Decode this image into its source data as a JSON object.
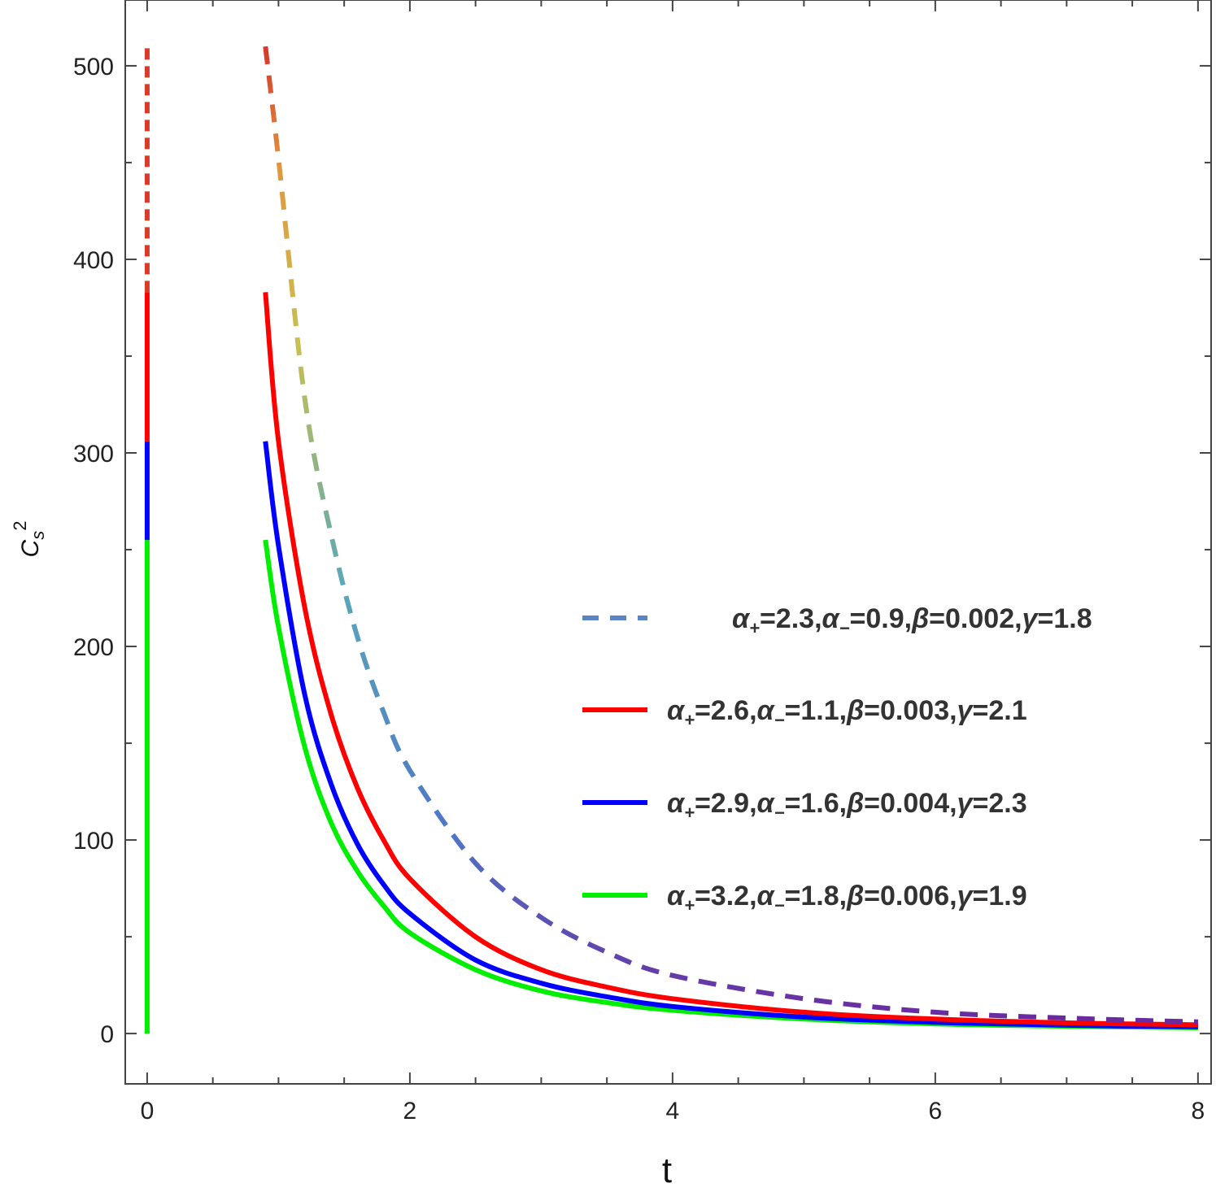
{
  "chart_data": {
    "type": "line",
    "xlabel": "t",
    "ylabel": {
      "main": "C",
      "sub": "s",
      "sup": "2"
    },
    "xlim": [
      -0.1667,
      8.1
    ],
    "ylim": [
      -26,
      534
    ],
    "xticks": [
      0,
      2,
      4,
      6,
      8
    ],
    "yticks": [
      0,
      100,
      200,
      300,
      400,
      500
    ],
    "grid": false,
    "frame": true,
    "legend_position": "center-right",
    "series": [
      {
        "name": "α₊=2.3,α₋=0.9,β=0.002,γ=1.8",
        "label_parts": {
          "a_plus": "2.3",
          "a_minus": "0.9",
          "beta": "0.002",
          "gamma": "1.8"
        },
        "style": "dashed",
        "color": "#5b84c4",
        "gradient": [
          "#d93a2a",
          "#e09840",
          "#c8c050",
          "#5aa8b8",
          "#4f78c8",
          "#6a2aa0"
        ],
        "points": [
          [
            0.9,
            510
          ],
          [
            1.0,
            452
          ],
          [
            1.2,
            328
          ],
          [
            1.4,
            258
          ],
          [
            1.6,
            205
          ],
          [
            1.8,
            166
          ],
          [
            2.0,
            136
          ],
          [
            2.5,
            88
          ],
          [
            3.0,
            60
          ],
          [
            3.5,
            42
          ],
          [
            4.0,
            30
          ],
          [
            5.0,
            18
          ],
          [
            6.0,
            11
          ],
          [
            7.0,
            8
          ],
          [
            8.0,
            6
          ]
        ]
      },
      {
        "name": "α₊=2.6,α₋=1.1,β=0.003,γ=2.1",
        "label_parts": {
          "a_plus": "2.6",
          "a_minus": "1.1",
          "beta": "0.003",
          "gamma": "2.1"
        },
        "style": "solid",
        "color": "#ff0000",
        "points": [
          [
            0.9,
            383
          ],
          [
            1.0,
            306
          ],
          [
            1.2,
            220
          ],
          [
            1.4,
            165
          ],
          [
            1.6,
            127
          ],
          [
            1.8,
            100
          ],
          [
            2.0,
            80
          ],
          [
            2.5,
            50
          ],
          [
            3.0,
            33
          ],
          [
            3.5,
            24
          ],
          [
            4.0,
            18
          ],
          [
            5.0,
            11
          ],
          [
            6.0,
            7.5
          ],
          [
            7.0,
            5.5
          ],
          [
            8.0,
            4.5
          ]
        ]
      },
      {
        "name": "α₊=2.9,α₋=1.6,β=0.004,γ=2.3",
        "label_parts": {
          "a_plus": "2.9",
          "a_minus": "1.6",
          "beta": "0.004",
          "gamma": "2.3"
        },
        "style": "solid",
        "color": "#0000ff",
        "points": [
          [
            0.9,
            306
          ],
          [
            1.0,
            252
          ],
          [
            1.2,
            175
          ],
          [
            1.4,
            129
          ],
          [
            1.6,
            98
          ],
          [
            1.8,
            77
          ],
          [
            2.0,
            62
          ],
          [
            2.5,
            38
          ],
          [
            3.0,
            26
          ],
          [
            3.5,
            19
          ],
          [
            4.0,
            14
          ],
          [
            5.0,
            8.5
          ],
          [
            6.0,
            5.8
          ],
          [
            7.0,
            4.3
          ],
          [
            8.0,
            3.5
          ]
        ]
      },
      {
        "name": "α₊=3.2,α₋=1.8,β=0.006,γ=1.9",
        "label_parts": {
          "a_plus": "3.2",
          "a_minus": "1.8",
          "beta": "0.006",
          "gamma": "1.9"
        },
        "style": "solid",
        "color": "#00ee00",
        "points": [
          [
            0.9,
            255
          ],
          [
            1.0,
            210
          ],
          [
            1.2,
            148
          ],
          [
            1.4,
            109
          ],
          [
            1.6,
            84
          ],
          [
            1.8,
            66
          ],
          [
            2.0,
            52
          ],
          [
            2.5,
            33
          ],
          [
            3.0,
            22
          ],
          [
            3.5,
            16
          ],
          [
            4.0,
            12
          ],
          [
            5.0,
            7.5
          ],
          [
            6.0,
            5
          ],
          [
            7.0,
            3.8
          ],
          [
            8.0,
            3
          ]
        ]
      }
    ],
    "vertical_artifact": {
      "x": 0,
      "segments": [
        {
          "from": 0,
          "to": 255,
          "color": "#00ee00"
        },
        {
          "from": 255,
          "to": 306,
          "color": "#0000ff"
        },
        {
          "from": 306,
          "to": 383,
          "color": "#ff0000"
        },
        {
          "from": 383,
          "to": 510,
          "color": "#d93a2a",
          "dashed": true
        }
      ]
    }
  }
}
